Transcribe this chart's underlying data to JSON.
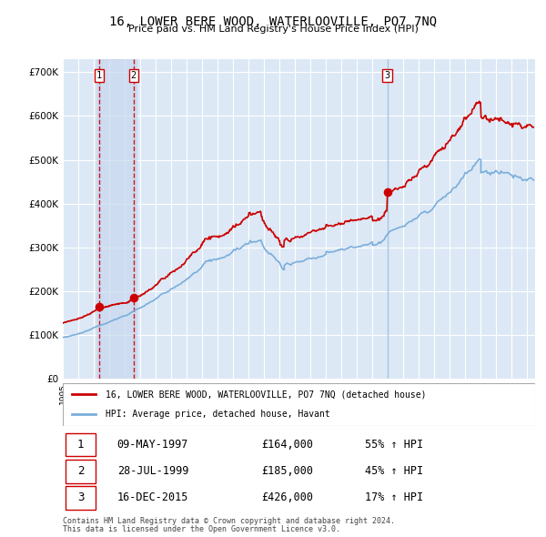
{
  "title": "16, LOWER BERE WOOD, WATERLOOVILLE, PO7 7NQ",
  "subtitle": "Price paid vs. HM Land Registry's House Price Index (HPI)",
  "legend_property": "16, LOWER BERE WOOD, WATERLOOVILLE, PO7 7NQ (detached house)",
  "legend_hpi": "HPI: Average price, detached house, Havant",
  "transactions": [
    {
      "num": 1,
      "date": "09-MAY-1997",
      "price": 164000,
      "pct": "55%",
      "dir": "↑"
    },
    {
      "num": 2,
      "date": "28-JUL-1999",
      "price": 185000,
      "pct": "45%",
      "dir": "↑"
    },
    {
      "num": 3,
      "date": "16-DEC-2015",
      "price": 426000,
      "pct": "17%",
      "dir": "↑"
    }
  ],
  "transaction_years": [
    1997.36,
    1999.57,
    2015.96
  ],
  "transaction_prices": [
    164000,
    185000,
    426000
  ],
  "footnote1": "Contains HM Land Registry data © Crown copyright and database right 2024.",
  "footnote2": "This data is licensed under the Open Government Licence v3.0.",
  "ylim": [
    0,
    730000
  ],
  "yticks": [
    0,
    100000,
    200000,
    300000,
    400000,
    500000,
    600000,
    700000
  ],
  "ytick_labels": [
    "£0",
    "£100K",
    "£200K",
    "£300K",
    "£400K",
    "£500K",
    "£600K",
    "£700K"
  ],
  "xlim_start": 1995.0,
  "xlim_end": 2025.5,
  "property_color": "#cc0000",
  "hpi_color": "#7aaddb",
  "background_color": "#dce8f5",
  "grid_color": "#ffffff",
  "vspan_color": "#c8d8ee"
}
